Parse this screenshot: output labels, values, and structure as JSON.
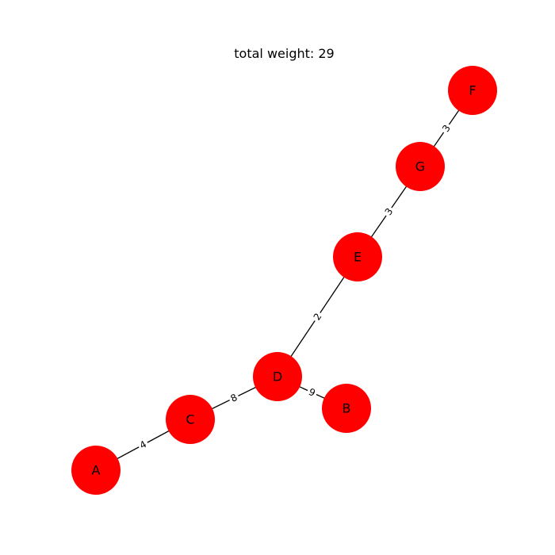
{
  "title": "total weight: 29",
  "style": {
    "node_color": "#ff0000",
    "edge_color": "#000000",
    "label_color": "#000000",
    "background": "#ffffff"
  },
  "nodes": [
    {
      "id": "A"
    },
    {
      "id": "B"
    },
    {
      "id": "C"
    },
    {
      "id": "D"
    },
    {
      "id": "E"
    },
    {
      "id": "F"
    },
    {
      "id": "G"
    }
  ],
  "edges": [
    {
      "source": "A",
      "target": "C",
      "weight": "4"
    },
    {
      "source": "C",
      "target": "D",
      "weight": "8"
    },
    {
      "source": "D",
      "target": "B",
      "weight": "9"
    },
    {
      "source": "D",
      "target": "E",
      "weight": "2"
    },
    {
      "source": "E",
      "target": "G",
      "weight": "3"
    },
    {
      "source": "G",
      "target": "F",
      "weight": "3"
    }
  ]
}
